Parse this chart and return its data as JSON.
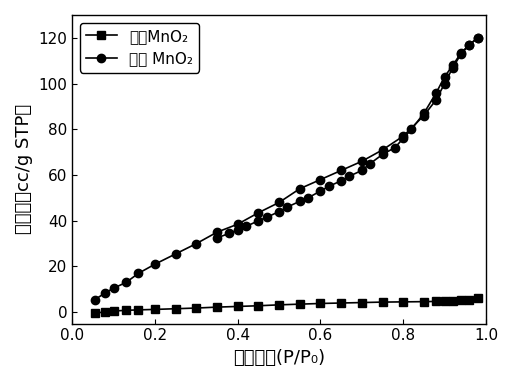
{
  "title": "",
  "xlabel": "相对压力(P/P₀)",
  "ylabel": "吸附量（cc/g STP）",
  "xlim": [
    0.05,
    1.0
  ],
  "ylim": [
    -5,
    130
  ],
  "yticks": [
    0,
    20,
    40,
    60,
    80,
    100,
    120
  ],
  "xticks": [
    0.0,
    0.2,
    0.4,
    0.6,
    0.8,
    1.0
  ],
  "powder_x": [
    0.055,
    0.08,
    0.1,
    0.13,
    0.16,
    0.2,
    0.25,
    0.3,
    0.35,
    0.4,
    0.45,
    0.5,
    0.55,
    0.6,
    0.65,
    0.7,
    0.75,
    0.8,
    0.85,
    0.88,
    0.9,
    0.92,
    0.94,
    0.96,
    0.98
  ],
  "powder_y": [
    -0.5,
    0.2,
    0.5,
    0.8,
    1.0,
    1.2,
    1.5,
    1.8,
    2.2,
    2.5,
    2.8,
    3.2,
    3.5,
    3.8,
    4.0,
    4.2,
    4.4,
    4.5,
    4.6,
    4.7,
    4.8,
    5.0,
    5.2,
    5.5,
    6.0
  ],
  "meso_adsorption_x": [
    0.055,
    0.08,
    0.1,
    0.13,
    0.16,
    0.2,
    0.25,
    0.3,
    0.35,
    0.4,
    0.45,
    0.5,
    0.55,
    0.6,
    0.65,
    0.7,
    0.75,
    0.8,
    0.85,
    0.88,
    0.9,
    0.92,
    0.94,
    0.96,
    0.98
  ],
  "meso_adsorption_y": [
    5.5,
    8.5,
    10.5,
    13.0,
    17.0,
    21.0,
    25.5,
    30.0,
    35.0,
    38.5,
    43.5,
    48.0,
    54.0,
    58.0,
    62.0,
    66.0,
    71.0,
    77.0,
    86.0,
    93.0,
    100.0,
    107.0,
    113.0,
    117.0,
    120.0
  ],
  "meso_desorption_x": [
    0.98,
    0.96,
    0.94,
    0.92,
    0.9,
    0.88,
    0.85,
    0.82,
    0.8,
    0.78,
    0.75,
    0.72,
    0.7,
    0.67,
    0.65,
    0.62,
    0.6,
    0.57,
    0.55,
    0.52,
    0.5,
    0.47,
    0.45,
    0.42,
    0.4,
    0.38,
    0.35
  ],
  "meso_desorption_y": [
    120.0,
    117.0,
    113.5,
    108.0,
    103.0,
    96.0,
    87.0,
    80.0,
    76.0,
    72.0,
    69.0,
    65.0,
    62.0,
    59.5,
    57.5,
    55.0,
    53.0,
    50.0,
    48.5,
    46.0,
    44.0,
    41.5,
    40.0,
    37.5,
    36.0,
    34.5,
    32.5
  ],
  "legend_powder": "粉末MnO₂",
  "legend_meso": "介孔 MnO₂",
  "line_color": "#000000",
  "marker_square": "s",
  "marker_circle": "o",
  "marker_size": 6,
  "linewidth": 1.2,
  "font_size_label": 13,
  "font_size_tick": 11,
  "font_size_legend": 11
}
